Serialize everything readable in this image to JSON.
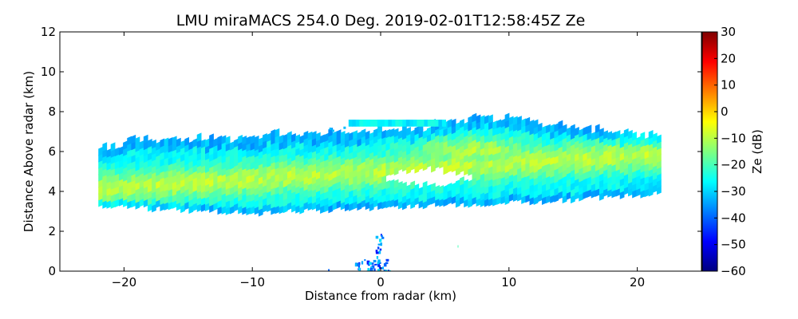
{
  "chart_data": {
    "type": "heatmap",
    "title": "LMU miraMACS 254.0 Deg. 2019-02-01T12:58:45Z  Ze",
    "xlabel": "Distance from radar (km)",
    "ylabel": "Distance Above radar  (km)",
    "xlim": [
      -25,
      25
    ],
    "ylim": [
      0,
      12
    ],
    "x_ticks": [
      -20,
      -10,
      0,
      10,
      20
    ],
    "x_tick_labels": [
      "−20",
      "−10",
      "0",
      "10",
      "20"
    ],
    "y_ticks": [
      0,
      2,
      4,
      6,
      8,
      10,
      12
    ],
    "y_tick_labels": [
      "0",
      "2",
      "4",
      "6",
      "8",
      "10",
      "12"
    ],
    "colorbar": {
      "label": "Ze (dB)",
      "range": [
        -60,
        30
      ],
      "ticks": [
        -60,
        -50,
        -40,
        -30,
        -20,
        -10,
        0,
        10,
        20,
        30
      ],
      "tick_labels": [
        "−60",
        "−50",
        "−40",
        "−30",
        "−20",
        "−10",
        "0",
        "10",
        "20",
        "30"
      ],
      "colormap": "jet",
      "colormap_stops": [
        "#00007f",
        "#0000ff",
        "#007fff",
        "#00ffff",
        "#7fff7f",
        "#ffff00",
        "#ff7f00",
        "#ff0000",
        "#7f0000"
      ]
    },
    "features": [
      {
        "name": "main cloud layer",
        "x_range": [
          -22,
          21.5
        ],
        "height_range": [
          3.0,
          7.7
        ],
        "typical_ze_db": -20,
        "max_ze_db": -8
      },
      {
        "name": "upper cloud fragment",
        "x_range": [
          -2.5,
          5
        ],
        "height_range": [
          7.2,
          7.6
        ],
        "typical_ze_db": -25
      },
      {
        "name": "echo gap",
        "x_range": [
          0,
          7
        ],
        "height_range": [
          4.4,
          5.2
        ]
      },
      {
        "name": "near-ground clutter",
        "x_range": [
          -3,
          1
        ],
        "height_range": [
          0,
          1.9
        ],
        "typical_ze_db": -40
      }
    ]
  }
}
